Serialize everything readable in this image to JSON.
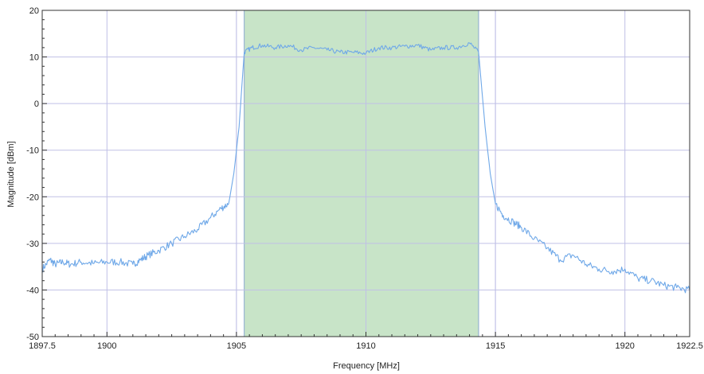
{
  "chart_data": {
    "type": "line",
    "title": "",
    "xlabel": "Frequency [MHz]",
    "ylabel": "Magnitude [dBm]",
    "xlim": [
      1897.5,
      1922.5
    ],
    "ylim": [
      -50,
      20
    ],
    "x_ticks": [
      {
        "value": 1897.5,
        "label": "1897.5"
      },
      {
        "value": 1900,
        "label": "1900"
      },
      {
        "value": 1905,
        "label": "1905"
      },
      {
        "value": 1910,
        "label": "1910"
      },
      {
        "value": 1915,
        "label": "1915"
      },
      {
        "value": 1920,
        "label": "1920"
      },
      {
        "value": 1922.5,
        "label": "1922.5"
      }
    ],
    "y_ticks": [
      {
        "value": 20,
        "label": "20"
      },
      {
        "value": 10,
        "label": "10"
      },
      {
        "value": 0,
        "label": "0"
      },
      {
        "value": -10,
        "label": "-10"
      },
      {
        "value": -20,
        "label": "-20"
      },
      {
        "value": -30,
        "label": "-30"
      },
      {
        "value": -40,
        "label": "-40"
      },
      {
        "value": -50,
        "label": "-50"
      }
    ],
    "grid": true,
    "extra_vlines": [
      1905.0,
      1915.0
    ],
    "highlight_band": {
      "x_start": 1905.3,
      "x_end": 1914.35,
      "color": "#c8e4c8"
    },
    "series": [
      {
        "color": "#6fa8e8",
        "x": [
          1897.5,
          1897.8,
          1898.0,
          1898.3,
          1898.6,
          1899.0,
          1899.5,
          1900.0,
          1900.5,
          1901.0,
          1901.3,
          1901.6,
          1902.0,
          1902.5,
          1903.0,
          1903.5,
          1904.0,
          1904.4,
          1904.7,
          1904.9,
          1905.1,
          1905.3,
          1905.6,
          1906.0,
          1906.5,
          1907.0,
          1907.5,
          1908.0,
          1908.5,
          1909.0,
          1909.5,
          1910.0,
          1910.5,
          1911.0,
          1911.5,
          1912.0,
          1912.5,
          1913.0,
          1913.5,
          1914.0,
          1914.35,
          1914.6,
          1914.8,
          1915.0,
          1915.3,
          1915.7,
          1916.0,
          1916.5,
          1917.0,
          1917.5,
          1918.0,
          1918.5,
          1919.0,
          1919.5,
          1920.0,
          1920.5,
          1921.0,
          1921.5,
          1922.0,
          1922.5
        ],
        "y": [
          -35.5,
          -33.5,
          -34.5,
          -34.0,
          -34.5,
          -34.0,
          -34.3,
          -34.0,
          -34.0,
          -34.5,
          -33.5,
          -32.5,
          -31.5,
          -30.0,
          -28.5,
          -27.0,
          -24.5,
          -22.5,
          -21.5,
          -15.0,
          -5.0,
          11.0,
          12.0,
          12.5,
          12.0,
          12.5,
          11.5,
          12.0,
          11.5,
          11.0,
          11.0,
          10.8,
          12.0,
          12.0,
          12.3,
          12.5,
          11.5,
          12.0,
          12.0,
          13.0,
          11.0,
          -5.0,
          -15.0,
          -21.5,
          -24.0,
          -25.5,
          -26.5,
          -29.0,
          -31.0,
          -33.5,
          -32.5,
          -34.5,
          -35.5,
          -36.0,
          -35.5,
          -37.5,
          -38.0,
          -39.0,
          -39.5,
          -40.0
        ]
      }
    ]
  }
}
